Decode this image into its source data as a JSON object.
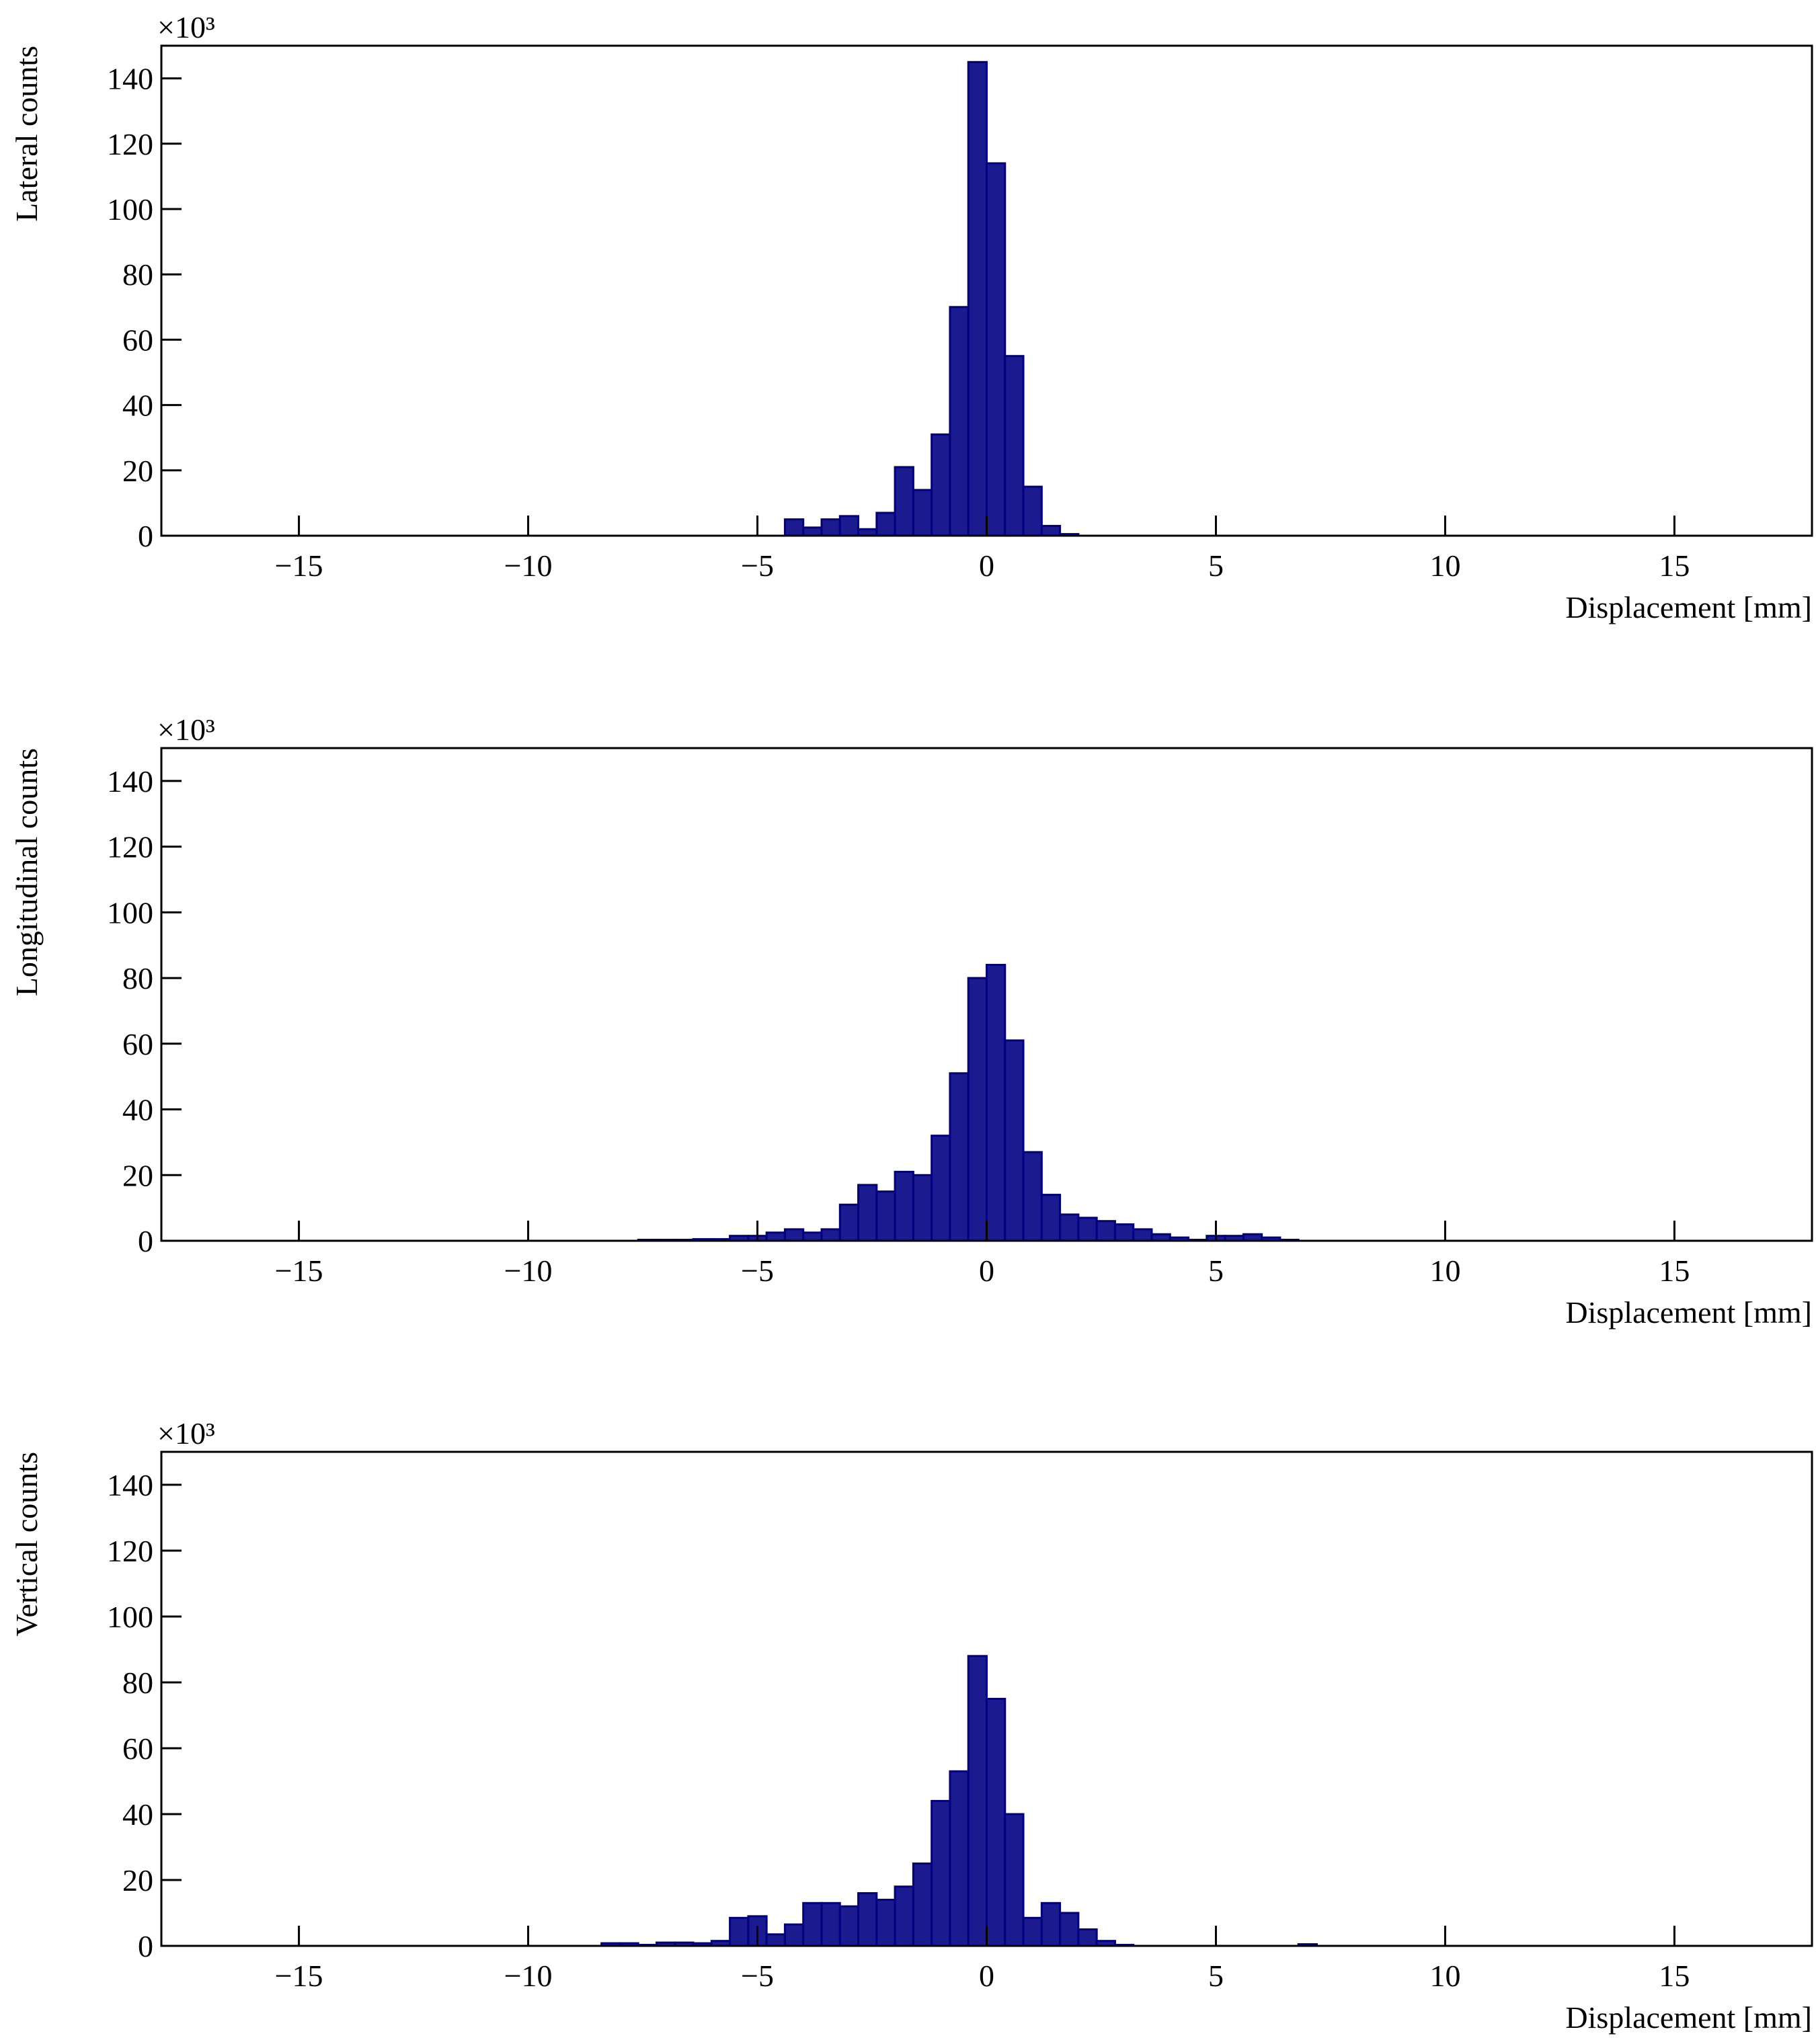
{
  "chart_data": [
    {
      "type": "histogram",
      "ylabel": "Lateral counts",
      "xlabel": "Displacement [mm]",
      "y_multiplier": "×10³",
      "color": "#1b1b8f",
      "bins": [
        -18,
        -17.6,
        -17.2,
        -16.8,
        -16.4,
        -16,
        -15.6,
        -15.2,
        -14.8,
        -14.4,
        -14,
        -13.6,
        -13.2,
        -12.8,
        -12.4,
        -12,
        -11.6,
        -11.2,
        -10.8,
        -10.4,
        -10,
        -9.6,
        -9.2,
        -8.8,
        -8.4,
        -8,
        -7.6,
        -7.2,
        -6.8,
        -6.4,
        -6,
        -5.6,
        -5.2,
        -4.8,
        -4.4,
        -4,
        -3.6,
        -3.2,
        -2.8,
        -2.4,
        -2,
        -1.6,
        -1.2,
        -0.8,
        -0.4,
        0,
        0.4,
        0.8,
        1.2,
        1.6,
        2,
        2.4,
        2.8,
        3.2,
        3.6,
        4,
        4.4,
        4.8,
        5.2,
        5.6,
        6,
        6.4,
        6.8,
        7.2,
        7.6,
        8,
        8.4,
        8.8,
        9.2,
        9.6,
        10,
        10.4,
        10.8,
        11.2,
        11.6,
        12,
        12.4,
        12.8,
        13.2,
        13.6,
        14,
        14.4,
        14.8,
        15.2,
        15.6,
        16,
        16.4,
        16.8,
        17.2,
        17.6,
        18
      ],
      "values": [
        0,
        0,
        0,
        0,
        0,
        0,
        0,
        0,
        0,
        0,
        0,
        0,
        0,
        0,
        0,
        0,
        0,
        0,
        0,
        0,
        0,
        0,
        0,
        0,
        0,
        0,
        0,
        0,
        0,
        0,
        0,
        0,
        0,
        0,
        5,
        2.5,
        5,
        6,
        2,
        7,
        21,
        14,
        31,
        70,
        145,
        114,
        55,
        15,
        3,
        0.5,
        0,
        0,
        0,
        0,
        0,
        0,
        0,
        0,
        0,
        0,
        0,
        0,
        0,
        0,
        0,
        0,
        0,
        0,
        0,
        0,
        0,
        0,
        0,
        0,
        0,
        0,
        0,
        0,
        0,
        0,
        0,
        0,
        0,
        0,
        0,
        0,
        0,
        0,
        0,
        0
      ],
      "xlim": [
        -18,
        18
      ],
      "ylim": [
        0,
        150
      ],
      "xticks": [
        {
          "value": -15,
          "label": "−15"
        },
        {
          "value": -10,
          "label": "−10"
        },
        {
          "value": -5,
          "label": "−5"
        },
        0,
        5,
        10,
        15
      ],
      "yticks": [
        0,
        20,
        40,
        60,
        80,
        100,
        120,
        140
      ]
    },
    {
      "type": "histogram",
      "ylabel": "Longitudinal counts",
      "xlabel": "Displacement [mm]",
      "y_multiplier": "×10³",
      "color": "#1b1b8f",
      "bins": [
        -18,
        -17.6,
        -17.2,
        -16.8,
        -16.4,
        -16,
        -15.6,
        -15.2,
        -14.8,
        -14.4,
        -14,
        -13.6,
        -13.2,
        -12.8,
        -12.4,
        -12,
        -11.6,
        -11.2,
        -10.8,
        -10.4,
        -10,
        -9.6,
        -9.2,
        -8.8,
        -8.4,
        -8,
        -7.6,
        -7.2,
        -6.8,
        -6.4,
        -6,
        -5.6,
        -5.2,
        -4.8,
        -4.4,
        -4,
        -3.6,
        -3.2,
        -2.8,
        -2.4,
        -2,
        -1.6,
        -1.2,
        -0.8,
        -0.4,
        0,
        0.4,
        0.8,
        1.2,
        1.6,
        2,
        2.4,
        2.8,
        3.2,
        3.6,
        4,
        4.4,
        4.8,
        5.2,
        5.6,
        6,
        6.4,
        6.8,
        7.2,
        7.6,
        8,
        8.4,
        8.8,
        9.2,
        9.6,
        10,
        10.4,
        10.8,
        11.2,
        11.6,
        12,
        12.4,
        12.8,
        13.2,
        13.6,
        14,
        14.4,
        14.8,
        15.2,
        15.6,
        16,
        16.4,
        16.8,
        17.2,
        17.6,
        18
      ],
      "values": [
        0,
        0,
        0,
        0,
        0,
        0,
        0,
        0,
        0,
        0,
        0,
        0,
        0,
        0,
        0,
        0,
        0,
        0,
        0,
        0,
        0,
        0,
        0,
        0,
        0,
        0,
        0.3,
        0.3,
        0.3,
        0.5,
        0.5,
        1.5,
        1.5,
        2.5,
        3.5,
        2.5,
        3.5,
        11,
        17,
        15,
        21,
        20,
        32,
        51,
        80,
        84,
        61,
        27,
        14,
        8,
        7,
        6,
        5,
        3.5,
        2,
        1,
        0.3,
        1.5,
        1.5,
        2,
        1,
        0.3,
        0,
        0,
        0,
        0,
        0,
        0,
        0,
        0,
        0,
        0,
        0,
        0,
        0,
        0,
        0,
        0,
        0,
        0,
        0,
        0,
        0,
        0,
        0,
        0,
        0,
        0,
        0,
        0
      ],
      "xlim": [
        -18,
        18
      ],
      "ylim": [
        0,
        150
      ],
      "xticks": [
        {
          "value": -15,
          "label": "−15"
        },
        {
          "value": -10,
          "label": "−10"
        },
        {
          "value": -5,
          "label": "−5"
        },
        0,
        5,
        10,
        15
      ],
      "yticks": [
        0,
        20,
        40,
        60,
        80,
        100,
        120,
        140
      ]
    },
    {
      "type": "histogram",
      "ylabel": "Vertical counts",
      "xlabel": "Displacement [mm]",
      "y_multiplier": "×10³",
      "color": "#1b1b8f",
      "bins": [
        -18,
        -17.6,
        -17.2,
        -16.8,
        -16.4,
        -16,
        -15.6,
        -15.2,
        -14.8,
        -14.4,
        -14,
        -13.6,
        -13.2,
        -12.8,
        -12.4,
        -12,
        -11.6,
        -11.2,
        -10.8,
        -10.4,
        -10,
        -9.6,
        -9.2,
        -8.8,
        -8.4,
        -8,
        -7.6,
        -7.2,
        -6.8,
        -6.4,
        -6,
        -5.6,
        -5.2,
        -4.8,
        -4.4,
        -4,
        -3.6,
        -3.2,
        -2.8,
        -2.4,
        -2,
        -1.6,
        -1.2,
        -0.8,
        -0.4,
        0,
        0.4,
        0.8,
        1.2,
        1.6,
        2,
        2.4,
        2.8,
        3.2,
        3.6,
        4,
        4.4,
        4.8,
        5.2,
        5.6,
        6,
        6.4,
        6.8,
        7.2,
        7.6,
        8,
        8.4,
        8.8,
        9.2,
        9.6,
        10,
        10.4,
        10.8,
        11.2,
        11.6,
        12,
        12.4,
        12.8,
        13.2,
        13.6,
        14,
        14.4,
        14.8,
        15.2,
        15.6,
        16,
        16.4,
        16.8,
        17.2,
        17.6,
        18
      ],
      "values": [
        0,
        0,
        0,
        0,
        0,
        0,
        0,
        0,
        0,
        0,
        0,
        0,
        0,
        0,
        0,
        0,
        0,
        0,
        0,
        0,
        0,
        0,
        0,
        0,
        0.8,
        0.8,
        0.3,
        1,
        1,
        0.8,
        1.5,
        8.5,
        9,
        3.5,
        6.5,
        13,
        13,
        12,
        16,
        14,
        18,
        25,
        44,
        53,
        88,
        75,
        40,
        8.5,
        13,
        10,
        5,
        1.5,
        0.3,
        0,
        0,
        0,
        0,
        0,
        0,
        0,
        0,
        0,
        0.5,
        0,
        0,
        0,
        0,
        0,
        0,
        0,
        0,
        0,
        0,
        0,
        0,
        0,
        0,
        0,
        0,
        0,
        0,
        0,
        0,
        0,
        0,
        0,
        0,
        0,
        0,
        0
      ],
      "xlim": [
        -18,
        18
      ],
      "ylim": [
        0,
        150
      ],
      "xticks": [
        {
          "value": -15,
          "label": "−15"
        },
        {
          "value": -10,
          "label": "−10"
        },
        {
          "value": -5,
          "label": "−5"
        },
        0,
        5,
        10,
        15
      ],
      "yticks": [
        0,
        20,
        40,
        60,
        80,
        100,
        120,
        140
      ]
    }
  ]
}
